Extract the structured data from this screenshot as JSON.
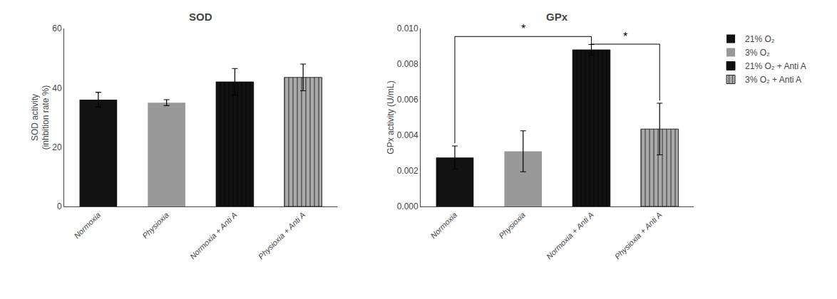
{
  "chart_data": [
    {
      "type": "bar",
      "title": "SOD",
      "ylabel": "SOD activity\n(inhbition rate %)",
      "categories": [
        "Normoxia",
        "Physioxia",
        "Normoxia + Anti A",
        "Physioxia + Anti A"
      ],
      "series": [
        {
          "name": "21% O₂",
          "color": "#111111",
          "values": [
            36.0,
            null,
            null,
            null
          ],
          "errors": [
            2.5,
            null,
            null,
            null
          ]
        },
        {
          "name": "3% O₂",
          "color": "#999999",
          "values": [
            null,
            35.0,
            null,
            null
          ],
          "errors": [
            null,
            1.0,
            null,
            null
          ]
        },
        {
          "name": "21% O₂ + Anti A",
          "color": "#111111",
          "marker": "vertical_hatch",
          "values": [
            null,
            null,
            42.0,
            null
          ],
          "errors": [
            null,
            null,
            4.5,
            null
          ]
        },
        {
          "name": "3% O₂ + Anti A",
          "color": "#aaaaaa",
          "marker": "vertical_hatch",
          "values": [
            null,
            null,
            null,
            43.5
          ],
          "errors": [
            null,
            null,
            null,
            4.5
          ]
        }
      ],
      "ylim": [
        0,
        60
      ],
      "yticks": [
        0,
        20,
        40,
        60
      ],
      "grid": false,
      "legend": "upper right"
    },
    {
      "type": "bar",
      "title": "GPx",
      "ylabel": "GPx activity (U/mL)",
      "categories": [
        "Normoxia",
        "Physioxia",
        "Normoxia + Anti A",
        "Physioxia + Anti A"
      ],
      "series": [
        {
          "name": "21% O₂",
          "color": "#111111",
          "values": [
            0.00275,
            null,
            null,
            null
          ],
          "errors": [
            0.00065,
            null,
            null,
            null
          ]
        },
        {
          "name": "3% O₂",
          "color": "#999999",
          "values": [
            null,
            0.0031,
            null,
            null
          ],
          "errors": [
            null,
            0.00115,
            null,
            null
          ]
        },
        {
          "name": "21% O₂ + Anti A",
          "color": "#111111",
          "marker": "vertical_hatch",
          "values": [
            null,
            null,
            0.0088,
            null
          ],
          "errors": [
            null,
            null,
            0.0003,
            null
          ]
        },
        {
          "name": "3% O₂ + Anti A",
          "color": "#aaaaaa",
          "marker": "vertical_hatch",
          "values": [
            null,
            null,
            null,
            0.00435
          ],
          "errors": [
            null,
            null,
            null,
            0.00145
          ]
        }
      ],
      "ylim": [
        0.0,
        0.01
      ],
      "yticks": [
        {
          "value": 0.0,
          "label": "0.000"
        },
        {
          "value": 0.002,
          "label": "0.002"
        },
        {
          "value": 0.004,
          "label": "0.004"
        },
        {
          "value": 0.006,
          "label": "0.006"
        },
        {
          "value": 0.008,
          "label": "0.008"
        },
        {
          "value": 0.01,
          "label": "0.010"
        }
      ],
      "grid": false,
      "annotations": [
        {
          "text": "*",
          "x": [
            0,
            2
          ],
          "y": 0.00955
        },
        {
          "text": "*",
          "x": [
            2,
            3
          ],
          "y": 0.00912
        }
      ]
    }
  ]
}
